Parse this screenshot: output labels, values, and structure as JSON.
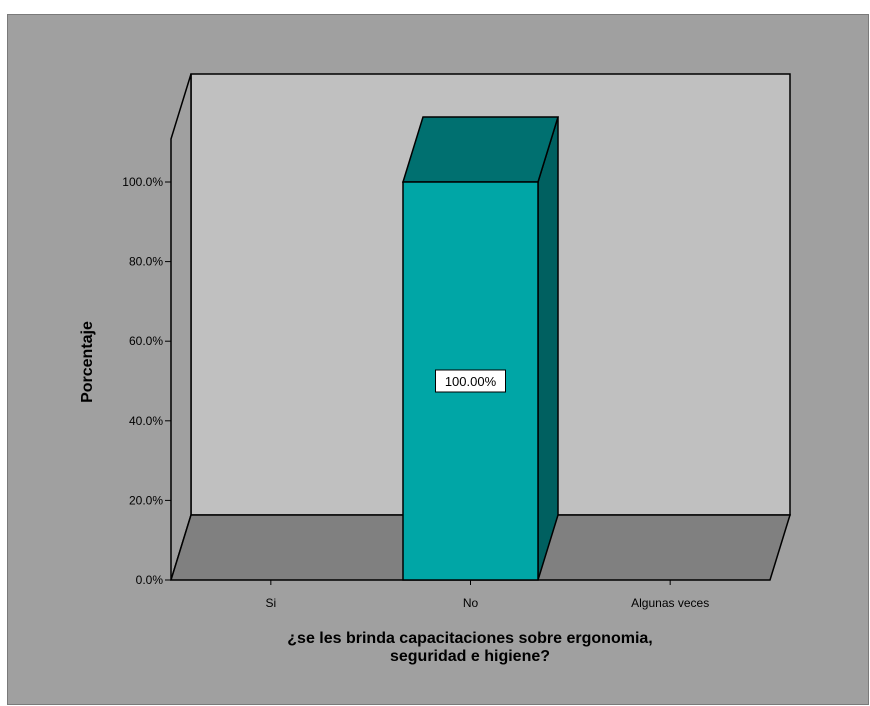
{
  "chart_data": {
    "type": "bar",
    "style": "3d",
    "categories": [
      "Si",
      "No",
      "Algunas veces"
    ],
    "values": [
      0,
      100,
      0
    ],
    "value_labels": [
      "",
      "100.00%",
      ""
    ],
    "ylabel": "Porcentaje",
    "xlabel_lines": [
      "¿se les brinda capacitaciones sobre ergonomia,",
      "seguridad e higiene?"
    ],
    "yticks": [
      "0.0%",
      "20.0%",
      "40.0%",
      "60.0%",
      "80.0%",
      "100.0%"
    ],
    "ylim": [
      0,
      100
    ],
    "grid": false,
    "legend": "none"
  },
  "colors": {
    "background": "#a0a0a0",
    "back_wall": "#c0c0c0",
    "side_wall": "#a0a0a0",
    "floor": "#808080",
    "bar_front": "#00a6a6",
    "bar_top": "#007070",
    "bar_side": "#006060"
  }
}
